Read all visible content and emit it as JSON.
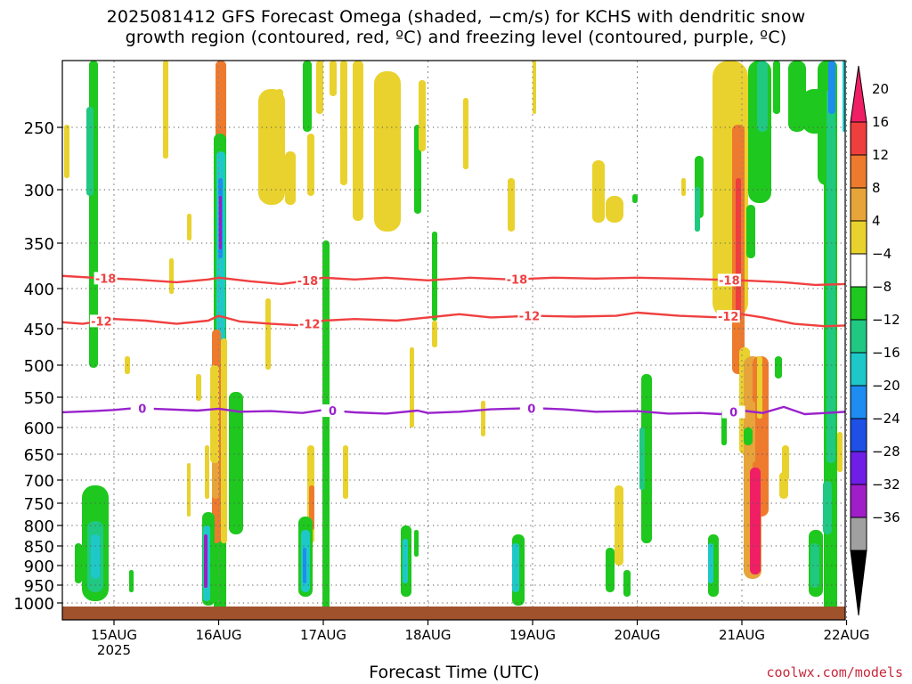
{
  "title": {
    "line1": "2025081412 GFS Forecast Omega (shaded, −cm/s) for KCHS with dendritic snow",
    "line2": "growth region (contoured, red, ºC) and freezing level (contoured, purple, ºC)"
  },
  "credit": "coolwx.com/models",
  "chart_data": {
    "type": "heatmap",
    "xlabel": "Forecast Time (UTC)",
    "x_ticks": [
      {
        "label": "15AUG",
        "sub": "2025",
        "day": 0
      },
      {
        "label": "16AUG",
        "sub": "",
        "day": 1
      },
      {
        "label": "17AUG",
        "sub": "",
        "day": 2
      },
      {
        "label": "18AUG",
        "sub": "",
        "day": 3
      },
      {
        "label": "19AUG",
        "sub": "",
        "day": 4
      },
      {
        "label": "20AUG",
        "sub": "",
        "day": 5
      },
      {
        "label": "21AUG",
        "sub": "",
        "day": 6
      },
      {
        "label": "22AUG",
        "sub": "",
        "day": 7
      }
    ],
    "x_range_days": [
      -0.5,
      7.0
    ],
    "y_ticks": [
      250,
      300,
      350,
      400,
      450,
      500,
      550,
      600,
      650,
      700,
      750,
      800,
      850,
      900,
      950,
      1000
    ],
    "y_range_hpa": [
      200,
      1020
    ],
    "ground_hpa": 1010,
    "colorbar": {
      "labels": [
        "20",
        "16",
        "12",
        "8",
        "4",
        "−4",
        "−8",
        "−12",
        "−16",
        "−20",
        "−24",
        "−28",
        "−32",
        "−36"
      ],
      "colors": [
        "#f01e64",
        "#ee3e3e",
        "#ee7a2e",
        "#e6a43a",
        "#e9d22e",
        "#ffffff",
        "#1ec81e",
        "#20c882",
        "#1ec8c8",
        "#1e8cf0",
        "#1e50e6",
        "#6e1ee6",
        "#a01ec8",
        "#a0a0a0",
        "#000000"
      ]
    },
    "contours": [
      {
        "name": "dgz-top",
        "color": "#f04040",
        "value_labels": [
          "-18",
          "-18",
          "-18",
          "-18"
        ],
        "label_days": [
          -0.08,
          1.85,
          3.85,
          5.88
        ],
        "points": [
          [
            -0.5,
            386
          ],
          [
            -0.2,
            388
          ],
          [
            0.2,
            390
          ],
          [
            0.6,
            393
          ],
          [
            0.9,
            390
          ],
          [
            1.0,
            388
          ],
          [
            1.3,
            392
          ],
          [
            1.6,
            395
          ],
          [
            1.8,
            392
          ],
          [
            2.0,
            388
          ],
          [
            2.3,
            390
          ],
          [
            2.6,
            388
          ],
          [
            3.0,
            391
          ],
          [
            3.4,
            388
          ],
          [
            3.8,
            390
          ],
          [
            4.2,
            388
          ],
          [
            4.6,
            389
          ],
          [
            5.0,
            388
          ],
          [
            5.4,
            389
          ],
          [
            5.7,
            390
          ],
          [
            6.0,
            391
          ],
          [
            6.4,
            393
          ],
          [
            6.7,
            396
          ],
          [
            7.0,
            395
          ]
        ]
      },
      {
        "name": "dgz-bottom",
        "color": "#f04040",
        "value_labels": [
          "-12",
          "-12",
          "-12",
          "-12"
        ],
        "label_days": [
          -0.12,
          1.87,
          3.97,
          5.87
        ],
        "points": [
          [
            -0.5,
            442
          ],
          [
            -0.3,
            444
          ],
          [
            0.0,
            438
          ],
          [
            0.3,
            440
          ],
          [
            0.6,
            444
          ],
          [
            0.9,
            440
          ],
          [
            1.0,
            434
          ],
          [
            1.2,
            441
          ],
          [
            1.5,
            444
          ],
          [
            1.8,
            446
          ],
          [
            2.0,
            440
          ],
          [
            2.3,
            438
          ],
          [
            2.7,
            440
          ],
          [
            3.0,
            436
          ],
          [
            3.3,
            432
          ],
          [
            3.6,
            436
          ],
          [
            4.0,
            434
          ],
          [
            4.4,
            435
          ],
          [
            4.8,
            434
          ],
          [
            5.0,
            430
          ],
          [
            5.4,
            434
          ],
          [
            5.8,
            436
          ],
          [
            6.0,
            432
          ],
          [
            6.2,
            436
          ],
          [
            6.5,
            444
          ],
          [
            6.8,
            447
          ],
          [
            7.0,
            446
          ]
        ]
      },
      {
        "name": "freezing-level",
        "color": "#9a22cc",
        "value_labels": [
          "0",
          "0",
          "0",
          "0"
        ],
        "label_days": [
          0.27,
          2.09,
          3.99,
          5.92
        ],
        "points": [
          [
            -0.5,
            575
          ],
          [
            -0.2,
            573
          ],
          [
            0.0,
            571
          ],
          [
            0.2,
            568
          ],
          [
            0.5,
            570
          ],
          [
            0.8,
            572
          ],
          [
            1.0,
            569
          ],
          [
            1.2,
            574
          ],
          [
            1.5,
            573
          ],
          [
            1.8,
            576
          ],
          [
            2.0,
            571
          ],
          [
            2.3,
            575
          ],
          [
            2.6,
            577
          ],
          [
            2.9,
            572
          ],
          [
            3.0,
            576
          ],
          [
            3.3,
            574
          ],
          [
            3.6,
            570
          ],
          [
            4.0,
            568
          ],
          [
            4.3,
            570
          ],
          [
            4.6,
            574
          ],
          [
            5.0,
            573
          ],
          [
            5.3,
            577
          ],
          [
            5.6,
            576
          ],
          [
            5.8,
            578
          ],
          [
            6.0,
            572
          ],
          [
            6.2,
            576
          ],
          [
            6.4,
            566
          ],
          [
            6.6,
            578
          ],
          [
            6.8,
            576
          ],
          [
            7.0,
            574
          ]
        ]
      }
    ]
  }
}
